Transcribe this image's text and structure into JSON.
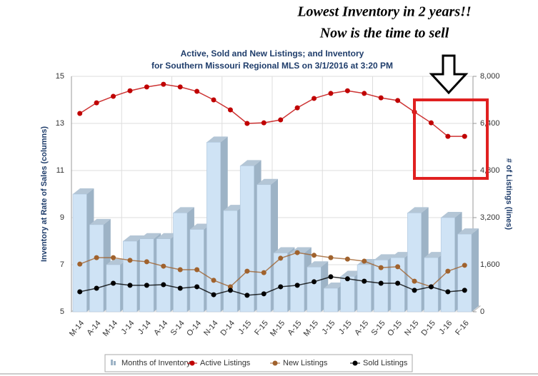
{
  "chart_data": {
    "type": "bar_line",
    "annotations": [
      "Lowest Inventory in 2 years!!",
      "Now is the time to sell"
    ],
    "title": "Active, Sold and New Listings; and Inventory",
    "subtitle": "for Southern Missouri Regional MLS on 3/1/2016 at 3:20 PM",
    "y_label": "Inventory at Rate of Sales (columns)",
    "y2_label": "# of Listings (lines)",
    "categories": [
      "M-14",
      "A-14",
      "M-14",
      "J-14",
      "J-14",
      "A-14",
      "S-14",
      "O-14",
      "N-14",
      "D-14",
      "J-15",
      "F-15",
      "M-15",
      "A-15",
      "M-15",
      "J-15",
      "J-15",
      "A-15",
      "S-15",
      "O-15",
      "N-15",
      "D-15",
      "J-16",
      "F-16"
    ],
    "ylim": [
      5,
      15
    ],
    "yticks": [
      5,
      7,
      9,
      11,
      13,
      15
    ],
    "y2lim": [
      0,
      8000
    ],
    "y2ticks": [
      0,
      {
        "value": 1600,
        "label": "1,600"
      },
      {
        "value": 3200,
        "label": "3,200"
      },
      {
        "value": 4800,
        "label": "4,800"
      },
      {
        "value": 6400,
        "label": "6,400"
      },
      {
        "value": 8000,
        "label": "8,000"
      }
    ],
    "grid": true,
    "series": [
      {
        "name": "Months of Inventory",
        "kind": "bar",
        "color": "#cfe3f5",
        "values": [
          10.0,
          8.7,
          7.0,
          8.0,
          8.1,
          8.1,
          9.2,
          8.5,
          12.2,
          9.3,
          11.2,
          10.4,
          7.5,
          7.5,
          6.9,
          6.0,
          6.5,
          7.0,
          7.2,
          7.3,
          9.2,
          7.3,
          9.0,
          8.3
        ]
      },
      {
        "name": "Active Listings",
        "kind": "line",
        "axis": "y2",
        "color": "#c00000",
        "values": [
          6740,
          7100,
          7320,
          7510,
          7640,
          7730,
          7640,
          7490,
          7200,
          6860,
          6400,
          6420,
          6520,
          6930,
          7250,
          7420,
          7510,
          7420,
          7270,
          7180,
          6790,
          6420,
          5960,
          5960
        ]
      },
      {
        "name": "New Listings",
        "kind": "line",
        "axis": "y2",
        "color": "#a0622d",
        "values": [
          1620,
          1840,
          1840,
          1750,
          1700,
          1550,
          1430,
          1430,
          1070,
          850,
          1380,
          1330,
          1820,
          2010,
          1920,
          1840,
          1790,
          1720,
          1500,
          1530,
          1040,
          850,
          1380,
          1580
        ]
      },
      {
        "name": "Sold Listings",
        "kind": "line",
        "axis": "y2",
        "color": "#000000",
        "values": [
          680,
          800,
          970,
          900,
          900,
          920,
          800,
          850,
          580,
          730,
          560,
          610,
          850,
          900,
          1020,
          1190,
          1120,
          1040,
          970,
          970,
          730,
          850,
          680,
          730
        ]
      }
    ]
  }
}
